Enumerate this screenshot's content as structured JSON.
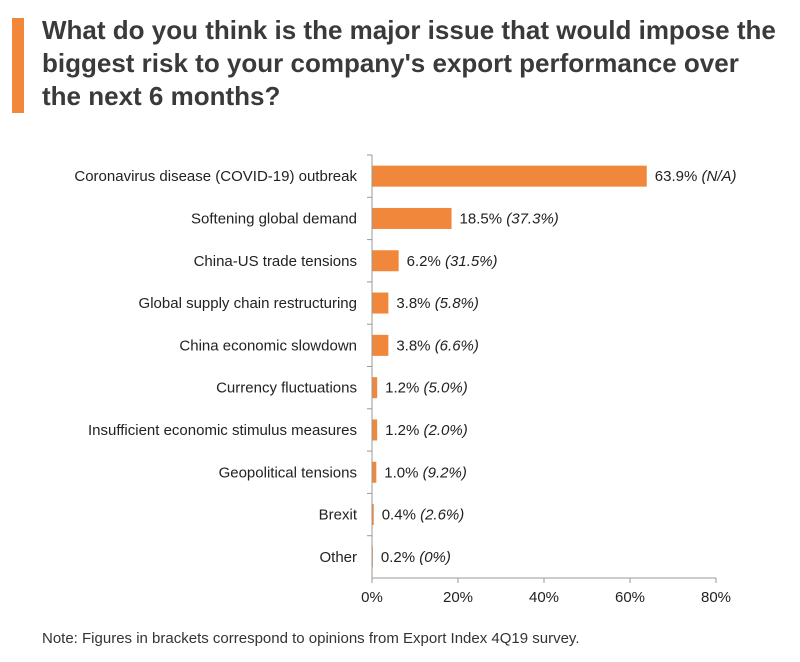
{
  "title": "What do you think is the major issue that would impose the biggest risk to your company's export performance over the next 6 months?",
  "note": "Note: Figures in brackets correspond to opinions from Export Index 4Q19 survey.",
  "colors": {
    "bar": "#f0873a",
    "accent": "#f0873a",
    "axis": "#999999"
  },
  "chart_data": {
    "type": "bar",
    "orientation": "horizontal",
    "categories": [
      "Coronavirus disease (COVID-19) outbreak",
      "Softening global demand",
      "China-US trade tensions",
      "Global supply chain restructuring",
      "China economic slowdown",
      "Currency fluctuations",
      "Insufficient economic stimulus measures",
      "Geopolitical tensions",
      "Brexit",
      "Other"
    ],
    "values": [
      63.9,
      18.5,
      6.2,
      3.8,
      3.8,
      1.2,
      1.2,
      1.0,
      0.4,
      0.2
    ],
    "value_labels": [
      "63.9%",
      "18.5%",
      "6.2%",
      "3.8%",
      "3.8%",
      "1.2%",
      "1.2%",
      "1.0%",
      "0.4%",
      "0.2%"
    ],
    "previous_labels": [
      "(N/A)",
      "(37.3%)",
      "(31.5%)",
      "(5.8%)",
      "(6.6%)",
      "(5.0%)",
      "(2.0%)",
      "(9.2%)",
      "(2.6%)",
      "(0%)"
    ],
    "xlim": [
      0,
      80
    ],
    "xticks": [
      "0%",
      "20%",
      "40%",
      "60%",
      "80%"
    ],
    "xlabel": "",
    "ylabel": "",
    "grid": false
  }
}
